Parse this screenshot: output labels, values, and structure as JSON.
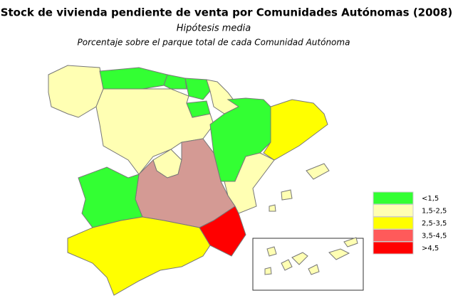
{
  "header": {
    "title": "Stock de vivienda pendiente de venta por Comunidades Autónomas (2008)",
    "subtitle": "Hipótesis media",
    "note": "Porcentaje sobre el parque total de cada Comunidad Autónoma"
  },
  "legend": {
    "items": [
      {
        "label": "<1,5",
        "color": "#33ff33"
      },
      {
        "label": "1,5-2,5",
        "color": "#ffffb3"
      },
      {
        "label": "2,5-3,5",
        "color": "#ffff00"
      },
      {
        "label": "3,5-4,5",
        "color": "#ff5a5a"
      },
      {
        "label": ">4,5",
        "color": "#ff0000"
      }
    ]
  }
}
